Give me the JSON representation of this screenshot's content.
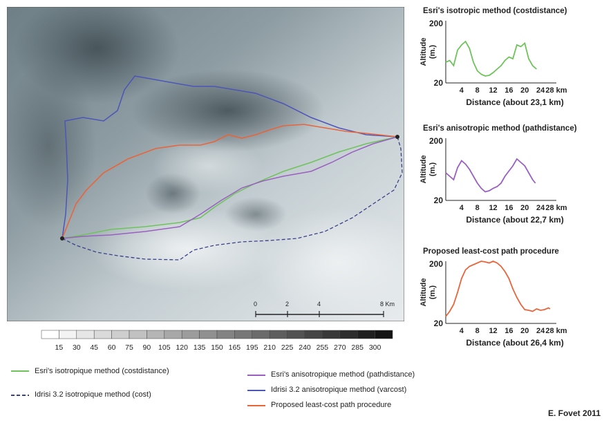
{
  "map": {
    "scale_bar": {
      "ticks": [
        "0",
        "2",
        "4",
        "8 Km"
      ]
    },
    "routes": [
      {
        "key": "green",
        "color": "#6dc35a"
      },
      {
        "key": "purple",
        "color": "#9a5fc1"
      },
      {
        "key": "blue",
        "color": "#4d55b8"
      },
      {
        "key": "orange",
        "color": "#e8643a"
      },
      {
        "key": "dashed",
        "color": "#3a3f8a"
      }
    ]
  },
  "colorbar": {
    "ticks": [
      "15",
      "30",
      "45",
      "60",
      "75",
      "90",
      "105",
      "120",
      "135",
      "150",
      "165",
      "195",
      "210",
      "225",
      "240",
      "255",
      "270",
      "285",
      "300"
    ]
  },
  "legend": {
    "items": [
      {
        "label": "Esri's isotropique method (costdistance)",
        "color": "#6dc35a",
        "style": "solid"
      },
      {
        "label": "Idrisi 3.2 isotropique method (cost)",
        "color": "#3a3f8a",
        "style": "dashed"
      },
      {
        "label": "Esri's anisotropique method (pathdistance)",
        "color": "#9a5fc1",
        "style": "solid"
      },
      {
        "label": "Idrisi 3.2 anisotropique method (varcost)",
        "color": "#4d55b8",
        "style": "solid"
      },
      {
        "label": "Proposed least-cost path procedure",
        "color": "#e8643a",
        "style": "solid"
      }
    ]
  },
  "chart_data": [
    {
      "type": "line",
      "title": "Esri's isotropic method (costdistance)",
      "xlabel": "Distance (about 23,1 km)",
      "ylabel": "Altitude (m.)",
      "ylim": [
        20,
        200
      ],
      "yticks": [
        "200",
        "20"
      ],
      "xticks": [
        "4",
        "8",
        "12",
        "16",
        "20",
        "24",
        "28 km"
      ],
      "xlim": [
        0,
        28
      ],
      "color": "#6dc35a",
      "x": [
        0,
        1,
        2,
        3,
        4,
        5,
        6,
        7,
        8,
        9,
        10,
        11,
        12,
        13,
        14,
        15,
        16,
        17,
        18,
        19,
        20,
        21,
        22,
        23
      ],
      "y": [
        80,
        85,
        70,
        115,
        130,
        140,
        120,
        80,
        55,
        45,
        40,
        42,
        50,
        60,
        70,
        85,
        95,
        90,
        130,
        125,
        135,
        90,
        70,
        60
      ]
    },
    {
      "type": "line",
      "title": "Esri's anisotropic method (pathdistance)",
      "xlabel": "Distance (about 22,7 km)",
      "ylabel": "Altitude (m.)",
      "ylim": [
        20,
        200
      ],
      "yticks": [
        "200",
        "20"
      ],
      "xticks": [
        "4",
        "8",
        "12",
        "16",
        "20",
        "24",
        "28 km"
      ],
      "xlim": [
        0,
        28
      ],
      "color": "#9a5fc1",
      "x": [
        0,
        1,
        2,
        3,
        4,
        5,
        6,
        7,
        8,
        9,
        10,
        11,
        12,
        13,
        14,
        15,
        16,
        17,
        18,
        19,
        20,
        21,
        22,
        22.7
      ],
      "y": [
        100,
        90,
        80,
        115,
        135,
        125,
        110,
        90,
        70,
        55,
        45,
        48,
        55,
        60,
        70,
        90,
        105,
        120,
        140,
        130,
        120,
        100,
        80,
        70
      ]
    },
    {
      "type": "line",
      "title": "Proposed least-cost path procedure",
      "xlabel": "Distance (about 26,4 km)",
      "ylabel": "Altitude (m.)",
      "ylim": [
        20,
        200
      ],
      "yticks": [
        "200",
        "20"
      ],
      "xticks": [
        "4",
        "8",
        "12",
        "16",
        "20",
        "24",
        "28 km"
      ],
      "xlim": [
        0,
        28
      ],
      "color": "#e8643a",
      "x": [
        0,
        1,
        2,
        3,
        4,
        5,
        6,
        7,
        8,
        9,
        10,
        11,
        12,
        13,
        14,
        15,
        16,
        17,
        18,
        19,
        20,
        21,
        22,
        23,
        24,
        25,
        26,
        26.4
      ],
      "y": [
        40,
        55,
        75,
        110,
        150,
        175,
        185,
        190,
        195,
        200,
        198,
        195,
        200,
        195,
        185,
        170,
        150,
        120,
        95,
        75,
        60,
        58,
        55,
        62,
        58,
        60,
        65,
        62
      ]
    }
  ],
  "credit": "E. Fovet 2011"
}
